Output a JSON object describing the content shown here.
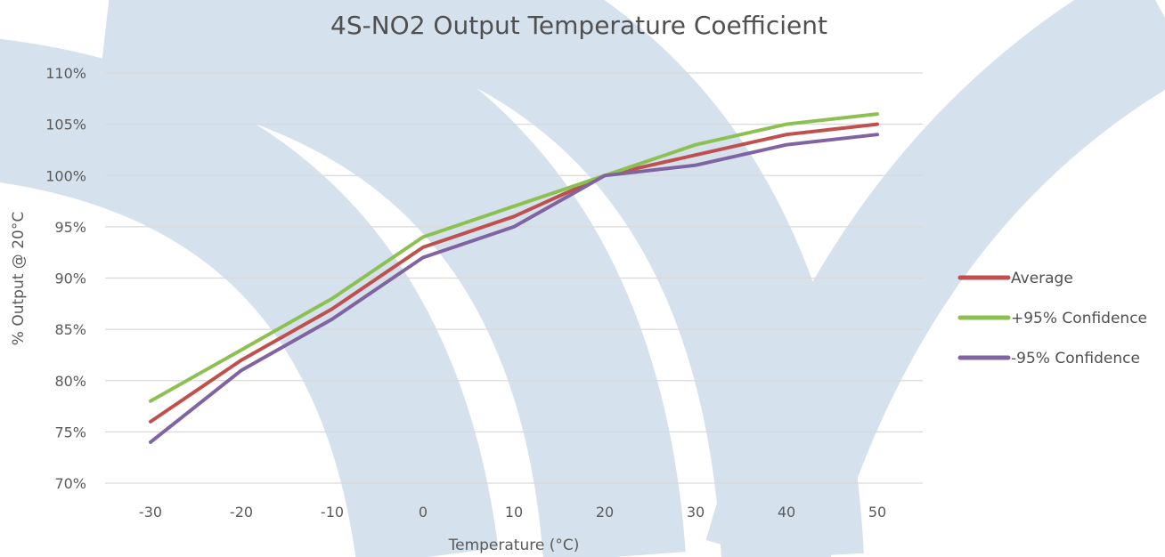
{
  "chart_data": {
    "type": "line",
    "title": "4S-NO2 Output Temperature Coefficient",
    "xlabel": "Temperature (°C)",
    "ylabel": "% Output @ 20°C",
    "x": [
      -30,
      -20,
      -10,
      0,
      10,
      20,
      30,
      40,
      50
    ],
    "x_tick_labels": [
      "-30",
      "-20",
      "-10",
      "0",
      "10",
      "20",
      "30",
      "40",
      "50"
    ],
    "ylim": [
      70,
      110
    ],
    "y_ticks": [
      70,
      75,
      80,
      85,
      90,
      95,
      100,
      105,
      110
    ],
    "y_tick_labels": [
      "70%",
      "75%",
      "80%",
      "85%",
      "90%",
      "95%",
      "100%",
      "105%",
      "110%"
    ],
    "grid": true,
    "legend_position": "right",
    "series": [
      {
        "name": "Average",
        "color": "#c0504d",
        "values": [
          76,
          82,
          87,
          93,
          96,
          100,
          102,
          104,
          105
        ]
      },
      {
        "name": "+95% Confidence",
        "color": "#8cc152",
        "values": [
          78,
          83,
          88,
          94,
          97,
          100,
          103,
          105,
          106
        ]
      },
      {
        "name": "-95% Confidence",
        "color": "#8064a2",
        "values": [
          74,
          81,
          86,
          92,
          95,
          100,
          101,
          103,
          104
        ]
      }
    ]
  }
}
